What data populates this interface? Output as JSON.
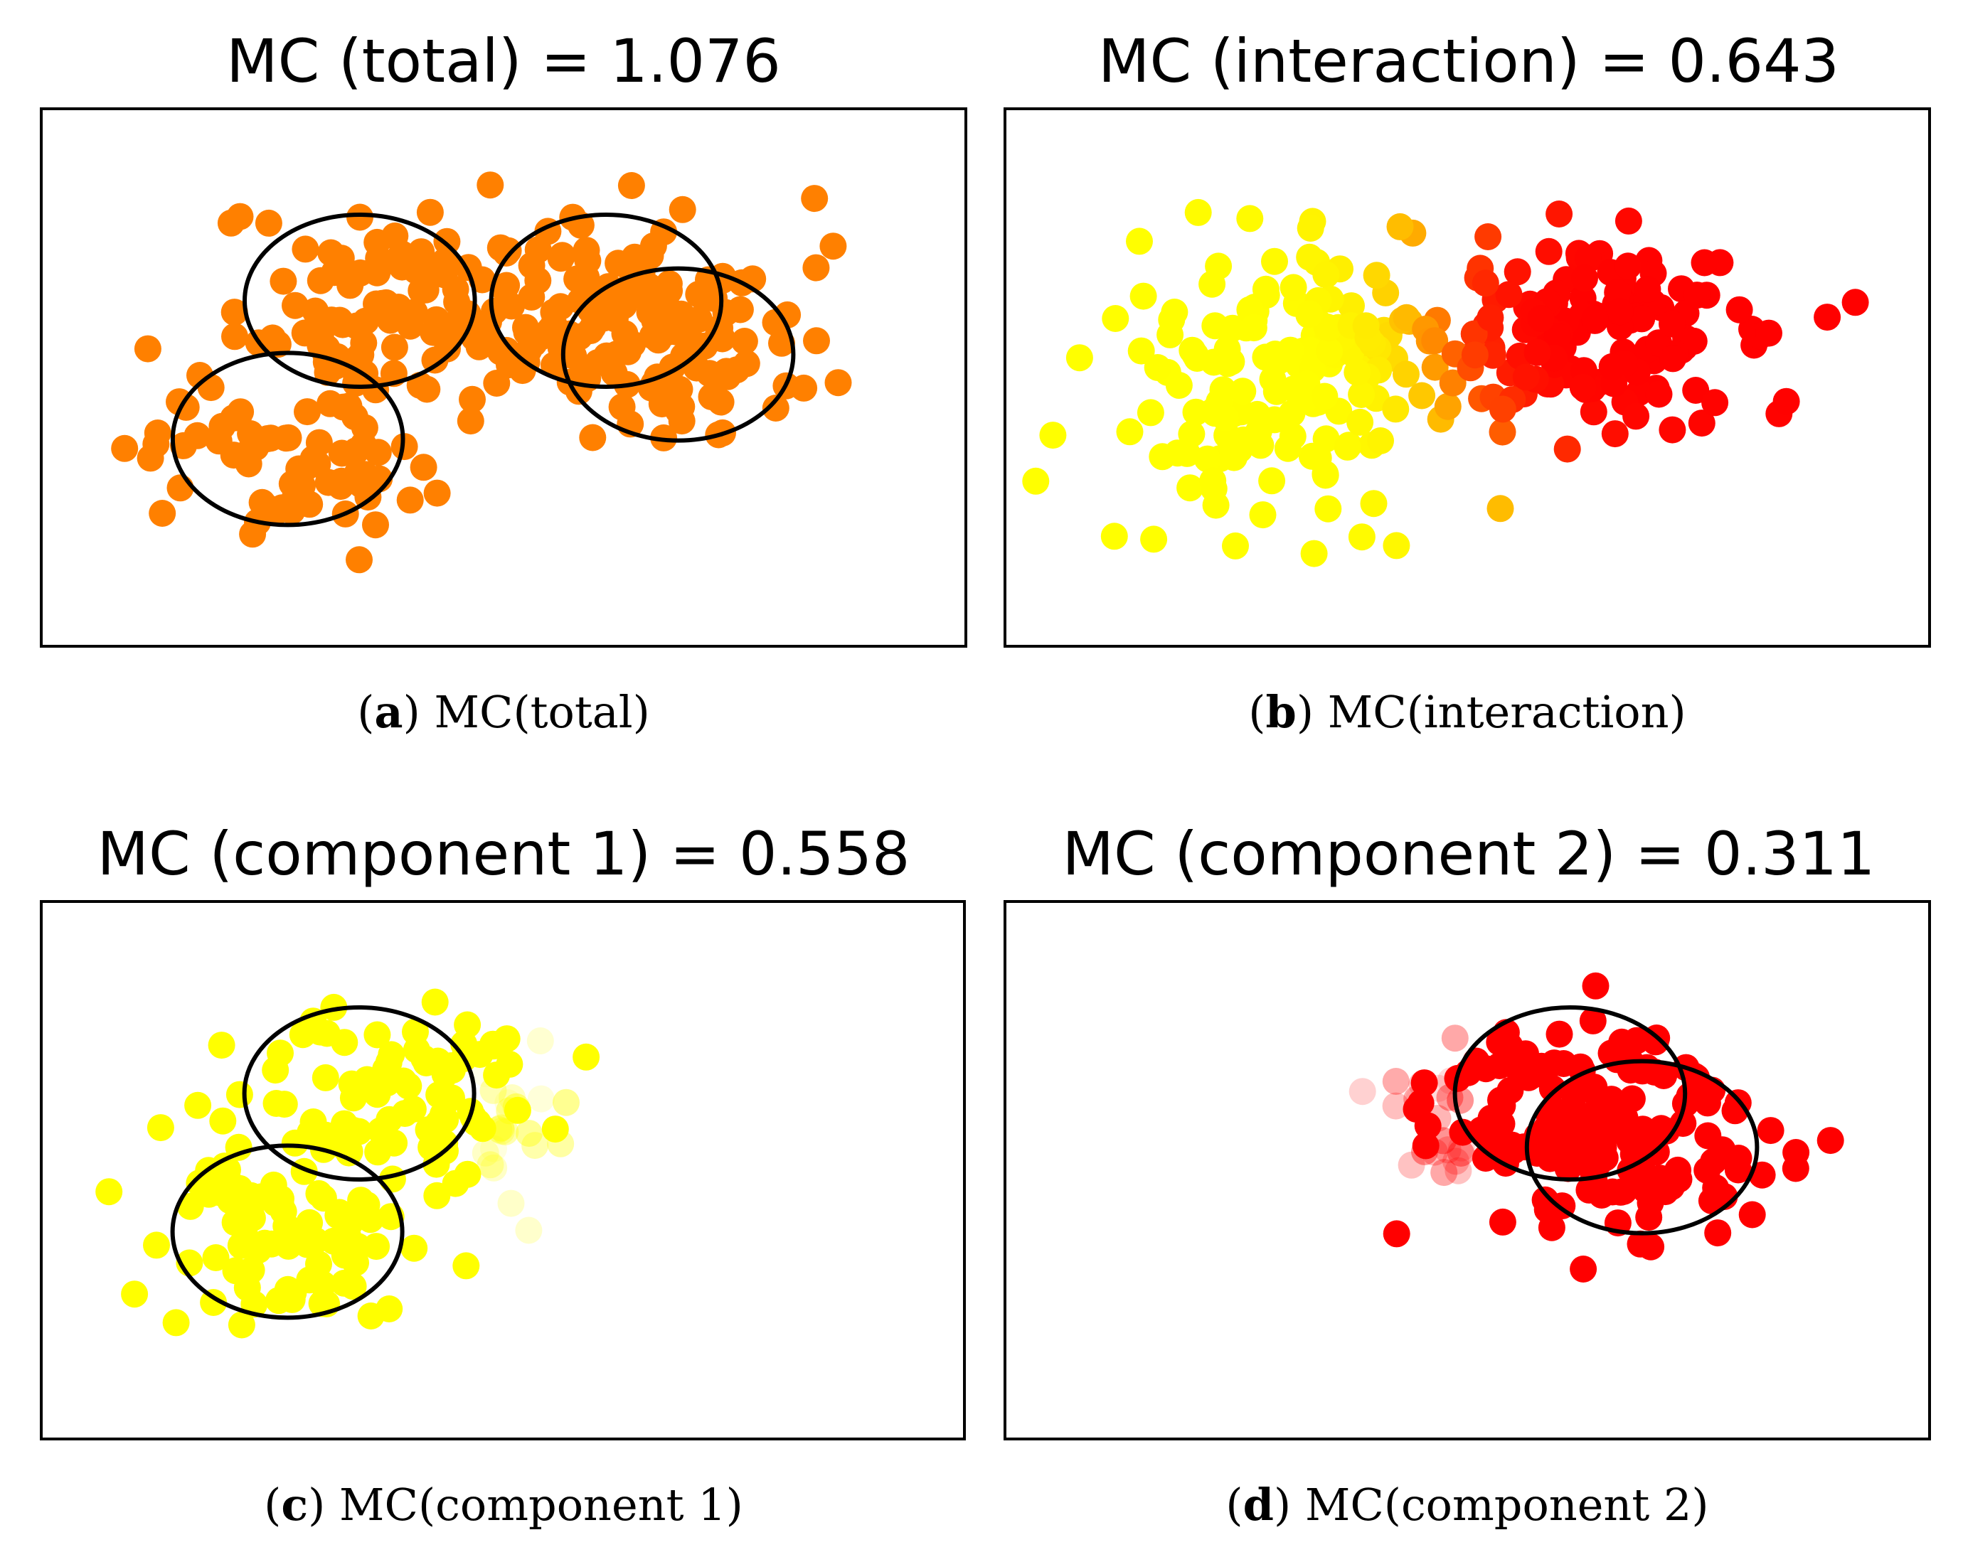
{
  "chart_data": [
    {
      "type": "scatter",
      "title": "MC (total) = 1.076",
      "caption": {
        "letter": "a",
        "text": "MC(total)"
      },
      "axes_visible": false,
      "xlim": [
        -4.5,
        4.5
      ],
      "ylim": [
        -3.5,
        3.5
      ],
      "point_color": "#ff8000",
      "clusters": [
        {
          "name": "lower-left",
          "cx": -2.1,
          "cy": -1.0,
          "sx": 0.7,
          "sy": 0.55,
          "n": 70
        },
        {
          "name": "upper-left",
          "cx": -1.4,
          "cy": 0.9,
          "sx": 0.75,
          "sy": 0.6,
          "n": 90
        },
        {
          "name": "upper-right",
          "cx": 1.0,
          "cy": 1.0,
          "sx": 0.75,
          "sy": 0.55,
          "n": 70
        },
        {
          "name": "right",
          "cx": 1.7,
          "cy": 0.3,
          "sx": 0.75,
          "sy": 0.6,
          "n": 80
        }
      ],
      "ellipses": [
        {
          "cx": -1.4,
          "cy": 1.0,
          "rx": 1.12,
          "ry": 1.12
        },
        {
          "cx": -2.1,
          "cy": -0.8,
          "rx": 1.12,
          "ry": 1.12
        },
        {
          "cx": 1.0,
          "cy": 1.0,
          "rx": 1.12,
          "ry": 1.12
        },
        {
          "cx": 1.7,
          "cy": 0.3,
          "rx": 1.12,
          "ry": 1.12
        }
      ]
    },
    {
      "type": "scatter",
      "title": "MC (interaction) = 0.643",
      "caption": {
        "letter": "b",
        "text": "MC(interaction)"
      },
      "axes_visible": false,
      "xlim": [
        -4.5,
        4.5
      ],
      "ylim": [
        -3.5,
        3.5
      ],
      "color_scale": [
        "#ffff00",
        "#ff8000",
        "#ff0000"
      ],
      "clusters": [
        {
          "name": "component 1",
          "cx": -1.8,
          "cy": 0.0,
          "sx": 0.85,
          "sy": 0.95,
          "n": 160,
          "color": "#ffff00"
        },
        {
          "name": "component 2",
          "cx": 1.2,
          "cy": 0.6,
          "sx": 0.8,
          "sy": 0.65,
          "n": 150,
          "color": "#ff0000"
        }
      ],
      "ellipses": []
    },
    {
      "type": "scatter",
      "title": "MC (component 1) = 0.558",
      "caption": {
        "letter": "c",
        "text": "MC(component 1)"
      },
      "axes_visible": false,
      "xlim": [
        -4.5,
        4.5
      ],
      "ylim": [
        -3.5,
        3.5
      ],
      "point_color": "#ffff00",
      "clusters": [
        {
          "name": "upper",
          "cx": -1.2,
          "cy": 1.0,
          "sx": 0.75,
          "sy": 0.6,
          "n": 90
        },
        {
          "name": "lower",
          "cx": -2.1,
          "cy": -0.8,
          "sx": 0.7,
          "sy": 0.55,
          "n": 80
        }
      ],
      "ellipses": [
        {
          "cx": -1.4,
          "cy": 1.0,
          "rx": 1.12,
          "ry": 1.12
        },
        {
          "cx": -2.1,
          "cy": -0.8,
          "rx": 1.12,
          "ry": 1.12
        }
      ]
    },
    {
      "type": "scatter",
      "title": "MC (component 2) = 0.311",
      "caption": {
        "letter": "d",
        "text": "MC(component 2)"
      },
      "axes_visible": false,
      "xlim": [
        -4.5,
        4.5
      ],
      "ylim": [
        -3.5,
        3.5
      ],
      "point_color": "#ff0000",
      "clusters": [
        {
          "name": "upper",
          "cx": 1.0,
          "cy": 1.0,
          "sx": 0.75,
          "sy": 0.55,
          "n": 80
        },
        {
          "name": "lower",
          "cx": 1.7,
          "cy": 0.3,
          "sx": 0.75,
          "sy": 0.6,
          "n": 90
        }
      ],
      "ellipses": [
        {
          "cx": 1.0,
          "cy": 1.0,
          "rx": 1.12,
          "ry": 1.12
        },
        {
          "cx": 1.7,
          "cy": 0.3,
          "rx": 1.12,
          "ry": 1.12
        }
      ]
    }
  ]
}
